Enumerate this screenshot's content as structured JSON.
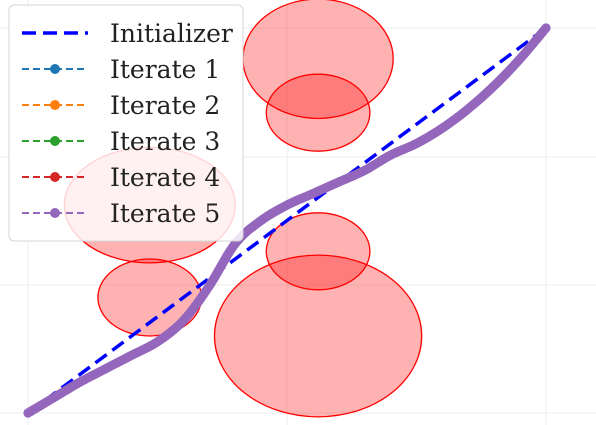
{
  "chart_data": {
    "type": "line",
    "xlim": [
      0,
      1
    ],
    "ylim": [
      0,
      1
    ],
    "grid": true,
    "legend_position": "top-left",
    "obstacles": [
      {
        "cx": 0.235,
        "cy": 0.54,
        "rx": 0.165,
        "ry": 0.15
      },
      {
        "cx": 0.235,
        "cy": 0.3,
        "rx": 0.1,
        "ry": 0.1
      },
      {
        "cx": 0.56,
        "cy": 0.92,
        "rx": 0.145,
        "ry": 0.155
      },
      {
        "cx": 0.56,
        "cy": 0.78,
        "rx": 0.1,
        "ry": 0.1
      },
      {
        "cx": 0.56,
        "cy": 0.42,
        "rx": 0.1,
        "ry": 0.1
      },
      {
        "cx": 0.56,
        "cy": 0.2,
        "rx": 0.2,
        "ry": 0.21
      }
    ],
    "obstacle_fill": "#ff0000",
    "obstacle_fill_opacity": 0.3,
    "obstacle_stroke": "#ff0000",
    "legend": [
      {
        "label": "Initializer",
        "color": "#0000ff",
        "marker": false
      },
      {
        "label": "Iterate 1",
        "color": "#1f77b4",
        "marker": true
      },
      {
        "label": "Iterate 2",
        "color": "#ff7f0e",
        "marker": true
      },
      {
        "label": "Iterate 3",
        "color": "#2ca02c",
        "marker": true
      },
      {
        "label": "Iterate 4",
        "color": "#d62728",
        "marker": true
      },
      {
        "label": "Iterate 5",
        "color": "#9467bd",
        "marker": true
      }
    ],
    "series": [
      {
        "name": "Initializer",
        "color": "#0000ff",
        "style": "dashed",
        "x": [
          0.0,
          1.0
        ],
        "y": [
          0.0,
          1.0
        ]
      },
      {
        "name": "Iterate 5",
        "color": "#9467bd",
        "style": "dashed-marker",
        "x": [
          0.0,
          0.05,
          0.1,
          0.15,
          0.2,
          0.25,
          0.3,
          0.35,
          0.4,
          0.45,
          0.5,
          0.55,
          0.6,
          0.65,
          0.7,
          0.75,
          0.8,
          0.85,
          0.9,
          0.95,
          1.0
        ],
        "y": [
          0.0,
          0.04,
          0.08,
          0.115,
          0.15,
          0.185,
          0.24,
          0.33,
          0.44,
          0.5,
          0.54,
          0.57,
          0.6,
          0.63,
          0.67,
          0.7,
          0.74,
          0.79,
          0.85,
          0.92,
          1.0
        ]
      }
    ]
  }
}
